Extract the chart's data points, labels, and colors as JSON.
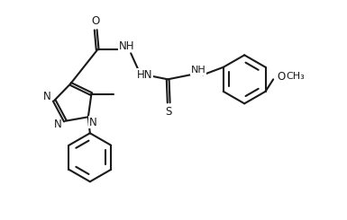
{
  "bg": "#ffffff",
  "lc": "#1a1a1a",
  "lw": 1.5,
  "fs": 8.5,
  "fig_w": 3.85,
  "fig_h": 2.45,
  "dpi": 100,
  "xlim": [
    0,
    3.85
  ],
  "ylim": [
    0,
    2.45
  ]
}
